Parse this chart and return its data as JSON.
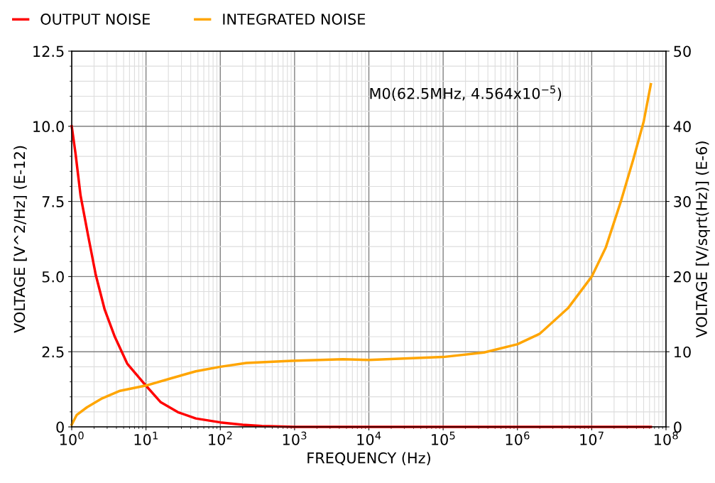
{
  "chart_data": {
    "type": "line",
    "xlabel": "FREQUENCY (Hz)",
    "ylabel": "VOLTAGE [V^2/Hz] (E-12)",
    "y2label": "VOLTAGE [V/sqrt(Hz)] (E-6)",
    "log": "x",
    "grid": true,
    "legend": "top left",
    "marker": "none",
    "line_style": "solid",
    "xlim": [
      1,
      100000000
    ],
    "xticks": [
      {
        "value": 1,
        "label": "10$^{0}$"
      },
      {
        "value": 10,
        "label": "10$^{1}$"
      },
      {
        "value": 100,
        "label": "10$^{2}$"
      },
      {
        "value": 1000,
        "label": "10$^{3}$"
      },
      {
        "value": 10000,
        "label": "10$^{4}$"
      },
      {
        "value": 100000,
        "label": "10$^{5}$"
      },
      {
        "value": 1000000,
        "label": "10$^{6}$"
      },
      {
        "value": 10000000,
        "label": "10$^{7}$"
      },
      {
        "value": 100000000,
        "label": "10$^{8}$"
      }
    ],
    "ylim": [
      0,
      12.5
    ],
    "yticks": [
      0,
      2.5,
      {
        "value": 5,
        "label": "5.0"
      },
      7.5,
      {
        "value": 10,
        "label": "10.0"
      },
      12.5
    ],
    "y2lim": [
      0,
      50
    ],
    "y2ticks": [
      0,
      10,
      20,
      30,
      40,
      50
    ],
    "series": [
      {
        "name": "OUTPUT NOISE",
        "color": "#ff0000",
        "x": [
          1,
          1.125,
          1.315,
          1.667,
          2.11,
          2.78,
          3.8,
          5.6,
          10,
          15.8,
          26.9,
          46.8,
          100,
          200,
          363,
          1000,
          10000,
          100000,
          1000000,
          10000000,
          62500000
        ],
        "values": [
          10.0,
          9.1,
          7.7,
          6.35,
          5.05,
          3.9,
          3.0,
          2.1,
          1.37,
          0.82,
          0.49,
          0.28,
          0.15,
          0.07,
          0.03,
          0,
          0,
          0,
          0,
          0,
          0
        ]
      },
      {
        "name": "INTEGRATED NOISE",
        "color": "#ffa500",
        "axis": "y2",
        "x": [
          1,
          1.17,
          1.6,
          2.57,
          4.47,
          10,
          22.4,
          46.8,
          100,
          224,
          912,
          4470,
          10000,
          100000,
          355000,
          1000000,
          2000000,
          4800000,
          10000000,
          15500000,
          24500000,
          36300000,
          50000000,
          62500000
        ],
        "values": [
          0.3,
          1.6,
          2.6,
          3.8,
          4.8,
          5.5,
          6.5,
          7.4,
          8.0,
          8.5,
          8.8,
          9.0,
          8.9,
          9.3,
          9.9,
          11.0,
          12.4,
          15.8,
          20,
          23.9,
          29.9,
          35.6,
          40.6,
          45.6
        ]
      }
    ],
    "annotations": [
      "M0(62.5MHz, 4.564x10$^{−5}$)"
    ]
  }
}
